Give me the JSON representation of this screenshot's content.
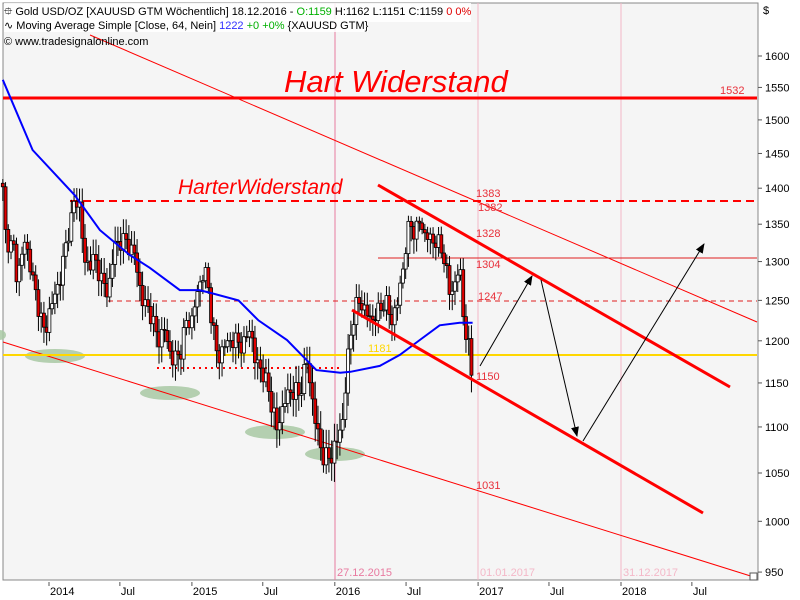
{
  "header": {
    "line1_prefix": "Gold USD/OZ [XAUUSD GTM  Wöchentlich] 18.12.2016 - ",
    "open": "O:1159",
    "high": "H:1162",
    "low": "L:1151",
    "close": "C:1159",
    "change": "0 0%",
    "line2_prefix": "Moving Average Simple [Close, 64, Nein] ",
    "ma_value": "1222",
    "ma_change": "+0 +0%",
    "ma_suffix": " {XAUUSD GTM}",
    "copyright": "www.tradesignalonline.com"
  },
  "colors": {
    "up": "#ffffff",
    "down": "#e00000",
    "ma": "#0000ff",
    "support": "#ffd700",
    "resistance": "#ff0000",
    "zones": "#a9c9a4",
    "date_lines": "#e87aa0"
  },
  "chart_data": {
    "type": "candlestick",
    "title": "Gold USD/OZ [XAUUSD GTM  Wöchentlich]",
    "yscale": "log",
    "ylim": [
      950,
      1600
    ],
    "yunit": "$",
    "yticks": [
      "1600",
      "1550",
      "1500",
      "1450",
      "1400",
      "1350",
      "1300",
      "1250",
      "1200",
      "1150",
      "1100",
      "1050",
      "1000",
      "950"
    ],
    "xticks": [
      "2014",
      "Jul",
      "2015",
      "Jul",
      "2016",
      "Jul",
      "2017",
      "Jul",
      "2018",
      "Jul"
    ],
    "grid": false,
    "close_series": [
      [
        "2013-09-05",
        1397
      ],
      [
        "2013-09-13",
        1329
      ],
      [
        "2013-10-06",
        1315
      ],
      [
        "2013-10-11",
        1276
      ],
      [
        "2013-11-01",
        1329
      ],
      [
        "2013-11-26",
        1263
      ],
      [
        "2013-12-21",
        1207
      ],
      [
        "2014-01-03",
        1238
      ],
      [
        "2014-01-29",
        1276
      ],
      [
        "2014-02-16",
        1329
      ],
      [
        "2014-03-08",
        1383
      ],
      [
        "2014-03-20",
        1377
      ],
      [
        "2014-04-02",
        1296
      ],
      [
        "2014-04-28",
        1302
      ],
      [
        "2014-05-11",
        1283
      ],
      [
        "2014-05-31",
        1257
      ],
      [
        "2014-06-18",
        1322
      ],
      [
        "2014-07-13",
        1329
      ],
      [
        "2014-08-08",
        1309
      ],
      [
        "2014-08-26",
        1250
      ],
      [
        "2014-09-15",
        1238
      ],
      [
        "2014-10-06",
        1201
      ],
      [
        "2014-10-24",
        1213
      ],
      [
        "2014-11-10",
        1177
      ],
      [
        "2014-12-01",
        1183
      ],
      [
        "2014-12-19",
        1225
      ],
      [
        "2015-01-01",
        1225
      ],
      [
        "2015-01-16",
        1263
      ],
      [
        "2015-01-29",
        1283
      ],
      [
        "2015-02-08",
        1283
      ],
      [
        "2015-02-21",
        1225
      ],
      [
        "2015-03-08",
        1177
      ],
      [
        "2015-03-26",
        1195
      ],
      [
        "2015-04-13",
        1201
      ],
      [
        "2015-05-16",
        1195
      ],
      [
        "2015-05-29",
        1219
      ],
      [
        "2015-06-11",
        1177
      ],
      [
        "2015-06-29",
        1165
      ],
      [
        "2015-07-19",
        1136
      ],
      [
        "2015-08-06",
        1097
      ],
      [
        "2015-08-26",
        1130
      ],
      [
        "2015-09-13",
        1142
      ],
      [
        "2015-10-03",
        1136
      ],
      [
        "2015-10-21",
        1177
      ],
      [
        "2015-11-05",
        1130
      ],
      [
        "2015-11-18",
        1091
      ],
      [
        "2015-12-06",
        1064
      ],
      [
        "2015-12-24",
        1069
      ],
      [
        "2016-01-08",
        1086
      ],
      [
        "2016-01-21",
        1108
      ],
      [
        "2016-02-08",
        1201
      ],
      [
        "2016-02-21",
        1238
      ],
      [
        "2016-03-05",
        1250
      ],
      [
        "2016-03-17",
        1238
      ],
      [
        "2016-04-04",
        1225
      ],
      [
        "2016-04-25",
        1238
      ],
      [
        "2016-05-08",
        1250
      ],
      [
        "2016-05-26",
        1225
      ],
      [
        "2016-06-11",
        1250
      ],
      [
        "2016-06-24",
        1296
      ],
      [
        "2016-07-11",
        1356
      ],
      [
        "2016-07-23",
        1335
      ],
      [
        "2016-08-05",
        1356
      ],
      [
        "2016-08-18",
        1335
      ],
      [
        "2016-09-05",
        1329
      ],
      [
        "2016-09-25",
        1322
      ],
      [
        "2016-10-08",
        1302
      ],
      [
        "2016-10-21",
        1257
      ],
      [
        "2016-11-02",
        1270
      ],
      [
        "2016-11-15",
        1296
      ],
      [
        "2016-11-23",
        1238
      ],
      [
        "2016-12-03",
        1201
      ],
      [
        "2016-12-11",
        1183
      ],
      [
        "2016-12-18",
        1159
      ]
    ],
    "moving_average": {
      "name": "Moving Average Simple [Close, 64, Nein]",
      "points": [
        [
          "2013-09-05",
          1562
        ],
        [
          "2013-11-20",
          1455
        ],
        [
          "2014-03-08",
          1390
        ],
        [
          "2014-05-11",
          1342
        ],
        [
          "2014-07-25",
          1309
        ],
        [
          "2014-09-15",
          1292
        ],
        [
          "2014-12-01",
          1263
        ],
        [
          "2015-01-20",
          1263
        ],
        [
          "2015-02-14",
          1260
        ],
        [
          "2015-04-30",
          1250
        ],
        [
          "2015-06-20",
          1225
        ],
        [
          "2015-09-01",
          1201
        ],
        [
          "2015-11-15",
          1165
        ],
        [
          "2016-01-15",
          1162
        ],
        [
          "2016-02-10",
          1163
        ],
        [
          "2016-04-25",
          1170
        ],
        [
          "2016-06-15",
          1183
        ],
        [
          "2016-08-05",
          1201
        ],
        [
          "2016-09-25",
          1219
        ],
        [
          "2016-11-15",
          1222
        ],
        [
          "2016-12-18",
          1222
        ]
      ]
    },
    "annotations": {
      "hart_widerstand": "Hart Widerstand",
      "harter_widerstand": "HarterWiderstand",
      "levels": [
        "1532",
        "1383",
        "1382",
        "1328",
        "1304",
        "1247",
        "1181",
        "1150",
        "1031"
      ],
      "date_markers": [
        "27.12.2015",
        "01.01.2017",
        "31.12.2017"
      ]
    }
  }
}
